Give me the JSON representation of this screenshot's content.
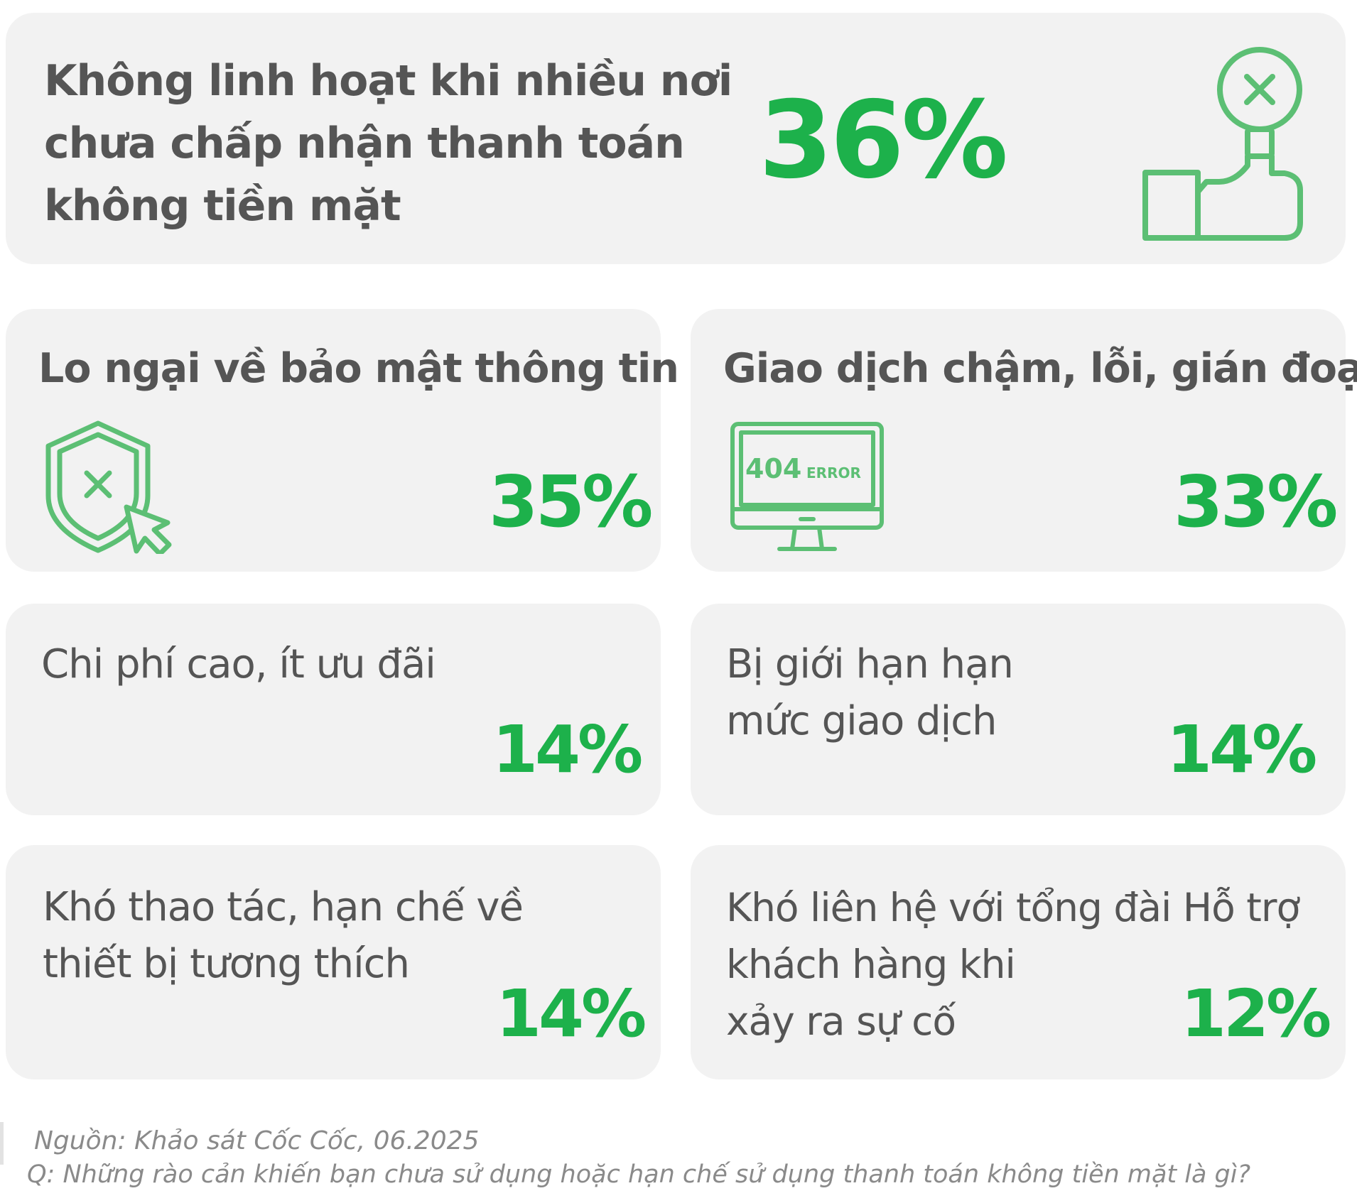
{
  "colors": {
    "accent": "#1db14b",
    "card": "#f2f2f2",
    "text": "#555555",
    "footer": "#8a8a8a"
  },
  "chart_data": {
    "type": "table",
    "rows": [
      {
        "label": "Không linh hoạt khi nhiều nơi chưa chấp nhận thanh toán không tiền mặt",
        "value": 36,
        "display": "36%",
        "icon": "hand-reject-icon"
      },
      {
        "label": "Lo ngại về bảo mật thông tin",
        "value": 35,
        "display": "35%",
        "icon": "security-shield-icon"
      },
      {
        "label": "Giao dịch chậm, lỗi, gián đoạn",
        "value": 33,
        "display": "33%",
        "icon": "error-404-monitor-icon"
      },
      {
        "label": "Chi phí cao, ít ưu đãi",
        "value": 14,
        "display": "14%"
      },
      {
        "label": "Bị giới hạn hạn mức giao dịch",
        "value": 14,
        "display": "14%"
      },
      {
        "label": "Khó thao tác, hạn chế về thiết bị tương thích",
        "value": 14,
        "display": "14%"
      },
      {
        "label": "Khó liên hệ với tổng đài Hỗ trợ khách hàng khi xảy ra sự cố",
        "value": 12,
        "display": "12%"
      }
    ]
  },
  "cards": {
    "c1": {
      "line1": "Không linh hoạt khi nhiều nơi",
      "line2": "chưa chấp nhận thanh toán",
      "line3": "không tiền mặt",
      "value": "36%"
    },
    "c2": {
      "line1": "Lo ngại về bảo mật thông tin",
      "value": "35%"
    },
    "c3": {
      "line1": "Giao dịch chậm, lỗi, gián đoạn",
      "value": "33%",
      "icon_text_a": "404",
      "icon_text_b": "ERROR"
    },
    "c4": {
      "line1": "Chi phí cao, ít ưu đãi",
      "value": "14%"
    },
    "c5": {
      "line1": "Bị giới hạn hạn",
      "line2": "mức giao dịch",
      "value": "14%"
    },
    "c6": {
      "line1": "Khó thao tác, hạn chế về",
      "line2": "thiết bị tương thích",
      "value": "14%"
    },
    "c7": {
      "line1": "Khó liên hệ với tổng đài Hỗ trợ",
      "line2": "khách hàng khi",
      "line3": "xảy ra sự cố",
      "value": "12%"
    }
  },
  "footer": {
    "source": "Nguồn: Khảo sát Cốc Cốc, 06.2025",
    "question": "Q: Những rào cản khiến bạn chưa sử dụng hoặc hạn chế sử dụng thanh toán không tiền mặt là gì?"
  }
}
